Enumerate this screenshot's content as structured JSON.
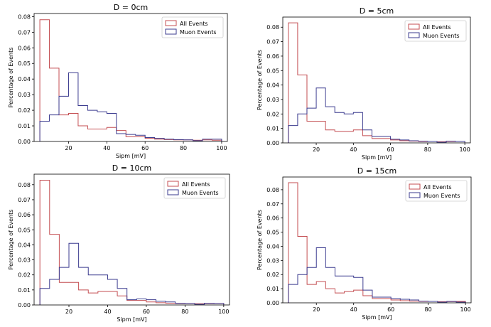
{
  "chart_data": [
    {
      "type": "histogram",
      "title": "D = 0cm",
      "xlabel": "Sipm [mV]",
      "ylabel": "Percentage of Events",
      "xlim": [
        2,
        103
      ],
      "ylim": [
        0,
        0.082
      ],
      "xticks": [
        20,
        40,
        60,
        80,
        100
      ],
      "xtick_labels": [
        "20",
        "40",
        "60",
        "80",
        "100"
      ],
      "yticks": [
        0,
        0.01,
        0.02,
        0.03,
        0.04,
        0.05,
        0.06,
        0.07,
        0.08
      ],
      "ytick_labels": [
        "0.00",
        "0.01",
        "0.02",
        "0.03",
        "0.04",
        "0.05",
        "0.06",
        "0.07",
        "0.08"
      ],
      "bin_edges": [
        5,
        10,
        15,
        20,
        25,
        30,
        35,
        40,
        45,
        50,
        55,
        60,
        65,
        70,
        75,
        80,
        85,
        90,
        95,
        100
      ],
      "legend_position": "top-right",
      "series": [
        {
          "name": "All Events",
          "color": "#c44e52",
          "values": [
            0.078,
            0.047,
            0.017,
            0.018,
            0.01,
            0.008,
            0.008,
            0.009,
            0.007,
            0.003,
            0.003,
            0.002,
            0.0015,
            0.0012,
            0.001,
            0.001,
            0.0008,
            0.001,
            0.0008
          ]
        },
        {
          "name": "Muon Events",
          "color": "#3b3b8f",
          "values": [
            0.013,
            0.017,
            0.029,
            0.044,
            0.023,
            0.02,
            0.019,
            0.018,
            0.005,
            0.0045,
            0.004,
            0.0025,
            0.002,
            0.0015,
            0.0012,
            0.001,
            0.0005,
            0.0015,
            0.0015
          ]
        }
      ]
    },
    {
      "type": "histogram",
      "title": "D = 5cm",
      "xlabel": "Sipm [mV]",
      "ylabel": "Percentage of Events",
      "xlim": [
        2,
        103
      ],
      "ylim": [
        0,
        0.087
      ],
      "xticks": [
        20,
        40,
        60,
        80,
        100
      ],
      "xtick_labels": [
        "20",
        "40",
        "60",
        "80",
        "100"
      ],
      "yticks": [
        0,
        0.01,
        0.02,
        0.03,
        0.04,
        0.05,
        0.06,
        0.07,
        0.08
      ],
      "ytick_labels": [
        "0.00",
        "0.01",
        "0.02",
        "0.03",
        "0.04",
        "0.05",
        "0.06",
        "0.07",
        "0.08"
      ],
      "bin_edges": [
        5,
        10,
        15,
        20,
        25,
        30,
        35,
        40,
        45,
        50,
        55,
        60,
        65,
        70,
        75,
        80,
        85,
        90,
        95,
        100
      ],
      "legend_position": "top-right",
      "series": [
        {
          "name": "All Events",
          "color": "#c44e52",
          "values": [
            0.083,
            0.047,
            0.015,
            0.015,
            0.009,
            0.008,
            0.008,
            0.009,
            0.005,
            0.003,
            0.003,
            0.002,
            0.0015,
            0.0012,
            0.001,
            0.001,
            0.0008,
            0.001,
            0.001
          ]
        },
        {
          "name": "Muon Events",
          "color": "#3b3b8f",
          "values": [
            0.012,
            0.02,
            0.024,
            0.038,
            0.025,
            0.021,
            0.02,
            0.021,
            0.009,
            0.0045,
            0.0045,
            0.0025,
            0.002,
            0.0015,
            0.0012,
            0.001,
            0.0005,
            0.0012,
            0.001
          ]
        }
      ]
    },
    {
      "type": "histogram",
      "title": "D = 10cm",
      "xlabel": "Sipm [mV]",
      "ylabel": "Percentage of Events",
      "xlim": [
        2,
        103
      ],
      "ylim": [
        0,
        0.087
      ],
      "xticks": [
        20,
        40,
        60,
        80,
        100
      ],
      "xtick_labels": [
        "20",
        "40",
        "60",
        "80",
        "100"
      ],
      "yticks": [
        0,
        0.01,
        0.02,
        0.03,
        0.04,
        0.05,
        0.06,
        0.07,
        0.08
      ],
      "ytick_labels": [
        "0.00",
        "0.01",
        "0.02",
        "0.03",
        "0.04",
        "0.05",
        "0.06",
        "0.07",
        "0.08"
      ],
      "bin_edges": [
        5,
        10,
        15,
        20,
        25,
        30,
        35,
        40,
        45,
        50,
        55,
        60,
        65,
        70,
        75,
        80,
        85,
        90,
        95,
        100
      ],
      "legend_position": "top-right",
      "series": [
        {
          "name": "All Events",
          "color": "#c44e52",
          "values": [
            0.083,
            0.047,
            0.015,
            0.015,
            0.01,
            0.008,
            0.009,
            0.009,
            0.006,
            0.003,
            0.003,
            0.002,
            0.0015,
            0.0012,
            0.001,
            0.001,
            0.0008,
            0.001,
            0.001
          ]
        },
        {
          "name": "Muon Events",
          "color": "#3b3b8f",
          "values": [
            0.011,
            0.017,
            0.025,
            0.041,
            0.025,
            0.02,
            0.02,
            0.017,
            0.011,
            0.0035,
            0.004,
            0.0035,
            0.0025,
            0.002,
            0.0012,
            0.001,
            0.0005,
            0.0012,
            0.001
          ]
        }
      ]
    },
    {
      "type": "histogram",
      "title": "D = 15cm",
      "xlabel": "Sipm [mV]",
      "ylabel": "Percentage of Events",
      "xlim": [
        2,
        103
      ],
      "ylim": [
        0,
        0.089
      ],
      "xticks": [
        20,
        40,
        60,
        80,
        100
      ],
      "xtick_labels": [
        "20",
        "40",
        "60",
        "80",
        "100"
      ],
      "yticks": [
        0,
        0.01,
        0.02,
        0.03,
        0.04,
        0.05,
        0.06,
        0.07,
        0.08
      ],
      "ytick_labels": [
        "0.00",
        "0.01",
        "0.02",
        "0.03",
        "0.04",
        "0.05",
        "0.06",
        "0.07",
        "0.08"
      ],
      "bin_edges": [
        5,
        10,
        15,
        20,
        25,
        30,
        35,
        40,
        45,
        50,
        55,
        60,
        65,
        70,
        75,
        80,
        85,
        90,
        95,
        100
      ],
      "legend_position": "top-right",
      "series": [
        {
          "name": "All Events",
          "color": "#c44e52",
          "values": [
            0.085,
            0.047,
            0.013,
            0.015,
            0.01,
            0.007,
            0.008,
            0.009,
            0.005,
            0.003,
            0.003,
            0.002,
            0.0015,
            0.0012,
            0.001,
            0.001,
            0.0008,
            0.0008,
            0.001
          ]
        },
        {
          "name": "Muon Events",
          "color": "#3b3b8f",
          "values": [
            0.013,
            0.02,
            0.025,
            0.039,
            0.025,
            0.019,
            0.019,
            0.018,
            0.009,
            0.004,
            0.004,
            0.003,
            0.0025,
            0.002,
            0.0012,
            0.001,
            0.0005,
            0.001,
            0.0005
          ]
        }
      ]
    }
  ]
}
